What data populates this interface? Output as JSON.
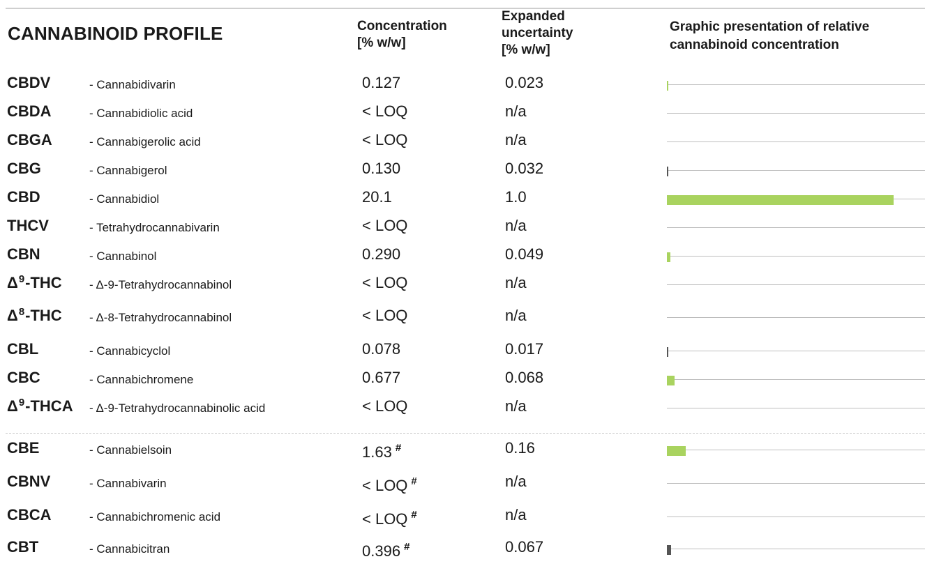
{
  "title": "CANNABINOID PROFILE",
  "headers": {
    "concentration": [
      "Concentration",
      "[% w/w]"
    ],
    "uncertainty": [
      "Expanded",
      "uncertainty",
      "[% w/w]"
    ],
    "graphic": [
      "Graphic presentation of relative",
      "cannabinoid concentration"
    ]
  },
  "colors": {
    "bar_green": "#a9d35f",
    "bar_dark": "#555555",
    "line_gray": "#bdbdbd"
  },
  "graph_scale_max": 21.4,
  "rows": [
    {
      "abbr_prefix": "",
      "sup": "",
      "abbr": "CBDV",
      "name": "- Cannabidivarin",
      "concentration": "0.127",
      "flag": "",
      "uncertainty": "0.023",
      "value": 0.127,
      "color": "green"
    },
    {
      "abbr_prefix": "",
      "sup": "",
      "abbr": "CBDA",
      "name": "- Cannabidiolic acid",
      "concentration": "< LOQ",
      "flag": "",
      "uncertainty": "n/a",
      "value": 0,
      "color": "green"
    },
    {
      "abbr_prefix": "",
      "sup": "",
      "abbr": "CBGA",
      "name": "- Cannabigerolic acid",
      "concentration": "< LOQ",
      "flag": "",
      "uncertainty": "n/a",
      "value": 0,
      "color": "green"
    },
    {
      "abbr_prefix": "",
      "sup": "",
      "abbr": "CBG",
      "name": "- Cannabigerol",
      "concentration": "0.130",
      "flag": "",
      "uncertainty": "0.032",
      "value": 0.13,
      "color": "dark"
    },
    {
      "abbr_prefix": "",
      "sup": "",
      "abbr": "CBD",
      "name": "- Cannabidiol",
      "concentration": "20.1",
      "flag": "",
      "uncertainty": "1.0",
      "value": 20.1,
      "color": "green"
    },
    {
      "abbr_prefix": "",
      "sup": "",
      "abbr": "THCV",
      "name": "- Tetrahydrocannabivarin",
      "concentration": "< LOQ",
      "flag": "",
      "uncertainty": "n/a",
      "value": 0,
      "color": "green"
    },
    {
      "abbr_prefix": "",
      "sup": "",
      "abbr": "CBN",
      "name": "- Cannabinol",
      "concentration": "0.290",
      "flag": "",
      "uncertainty": "0.049",
      "value": 0.29,
      "color": "green"
    },
    {
      "abbr_prefix": "Δ",
      "sup": "9",
      "abbr": "-THC",
      "name": "- Δ-9-Tetrahydrocannabinol",
      "concentration": "< LOQ",
      "flag": "",
      "uncertainty": "n/a",
      "value": 0,
      "color": "green"
    },
    {
      "abbr_prefix": "Δ",
      "sup": "8",
      "abbr": "-THC",
      "name": "- Δ-8-Tetrahydrocannabinol",
      "concentration": "< LOQ",
      "flag": "",
      "uncertainty": "n/a",
      "value": 0,
      "color": "green"
    },
    {
      "abbr_prefix": "",
      "sup": "",
      "abbr": "CBL",
      "name": "- Cannabicyclol",
      "concentration": "0.078",
      "flag": "",
      "uncertainty": "0.017",
      "value": 0.078,
      "color": "dark"
    },
    {
      "abbr_prefix": "",
      "sup": "",
      "abbr": "CBC",
      "name": "- Cannabichromene",
      "concentration": "0.677",
      "flag": "",
      "uncertainty": "0.068",
      "value": 0.677,
      "color": "green"
    },
    {
      "abbr_prefix": "Δ",
      "sup": "9",
      "abbr": "-THCA",
      "name": "- Δ-9-Tetrahydrocannabinolic acid",
      "concentration": "< LOQ",
      "flag": "",
      "uncertainty": "n/a",
      "value": 0,
      "color": "green"
    },
    {
      "abbr_prefix": "",
      "sup": "",
      "abbr": "CBE",
      "name": "- Cannabielsoin",
      "concentration": "1.63",
      "flag": "#",
      "uncertainty": "0.16",
      "value": 1.63,
      "color": "green"
    },
    {
      "abbr_prefix": "",
      "sup": "",
      "abbr": "CBNV",
      "name": "- Cannabivarin",
      "concentration": "< LOQ",
      "flag": "#",
      "uncertainty": "n/a",
      "value": 0,
      "color": "green"
    },
    {
      "abbr_prefix": "",
      "sup": "",
      "abbr": "CBCA",
      "name": "- Cannabichromenic acid",
      "concentration": "< LOQ",
      "flag": "#",
      "uncertainty": "n/a",
      "value": 0,
      "color": "green"
    },
    {
      "abbr_prefix": "",
      "sup": "",
      "abbr": "CBT",
      "name": "- Cannabicitran",
      "concentration": "0.396",
      "flag": "#",
      "uncertainty": "0.067",
      "value": 0.396,
      "color": "dark"
    }
  ]
}
